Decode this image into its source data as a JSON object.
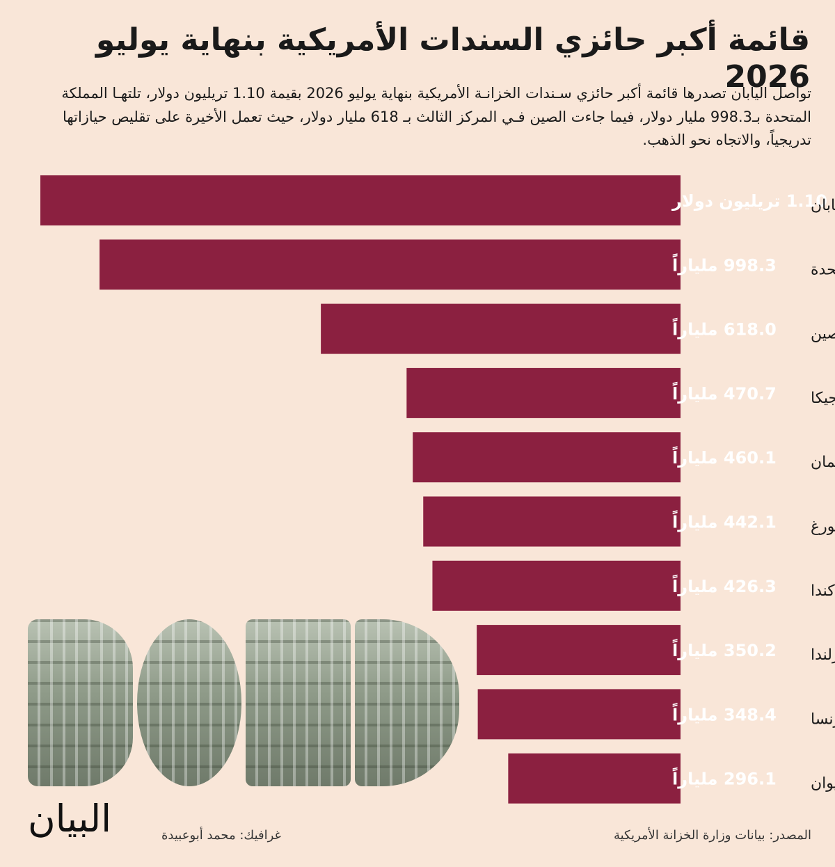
{
  "header": {
    "title": "قائمة أكبر حائزي السندات الأمريكية بنهاية يوليو 2026",
    "subtitle": "تواصل اليابان تصدرها قائمة أكبر حائزي سـندات الخزانـة الأمريكية بنهاية يوليو 2026 بقيمة 1.10 تريليون دولار، تلتهـا المملكة المتحدة بـ998.3 مليار دولار، فيما جاءت الصين فـي المركز الثالث بـ 618 مليار دولار، حيث تعمل الأخيرة على تقليص حيازاتها تدريجياً، والاتجاه نحو الذهب."
  },
  "chart_data": {
    "type": "bar",
    "orientation": "horizontal",
    "categories": [
      "اليابان",
      "المملكة المتحدة",
      "الصين",
      "بلجيكا",
      "جزر الكايمان",
      "لوكسمبورغ",
      "كندا",
      "إيرلندا",
      "فرنسا",
      "تايوان"
    ],
    "values": [
      1100,
      998.3,
      618.0,
      470.7,
      460.1,
      442.1,
      426.3,
      350.2,
      348.4,
      296.1
    ],
    "value_labels": [
      "1.10 تريليون دولار",
      "998.3 ملياراً",
      "618.0 ملياراً",
      "470.7 ملياراً",
      "460.1 ملياراً",
      "442.1 ملياراً",
      "426.3 ملياراً",
      "350.2 ملياراً",
      "348.4 ملياراً",
      "296.1 ملياراً"
    ],
    "bar_color": "#8b2040",
    "direction": "right-to-left"
  },
  "decoration": {
    "word": "BOND",
    "style": "banknote-texture"
  },
  "footer": {
    "logo_text": "البيان",
    "credit": "غرافيك: محمد أبوعبيدة",
    "source": "المصدر: بيانات وزارة الخزانة الأمريكية"
  }
}
